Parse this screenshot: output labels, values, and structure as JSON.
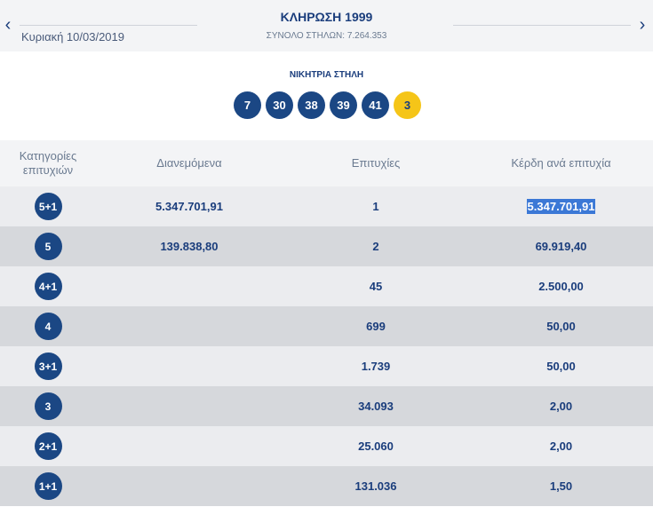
{
  "header": {
    "prev_arrow": "‹",
    "next_arrow": "›",
    "date": "Κυριακή 10/03/2019",
    "title": "ΚΛΗΡΩΣΗ 1999",
    "total_columns": "ΣΥΝΟΛΟ ΣΤΗΛΩΝ: 7.264.353"
  },
  "winning": {
    "label": "ΝΙΚΗΤΡΙΑ ΣΤΗΛΗ",
    "numbers": [
      "7",
      "30",
      "38",
      "39",
      "41"
    ],
    "joker": "3",
    "colors": {
      "number": "#1b4784",
      "joker": "#f5c518"
    }
  },
  "table": {
    "headers": {
      "category": "Κατηγορίες επιτυχιών",
      "distributed": "Διανεμόμενα",
      "winners": "Επιτυχίες",
      "prize": "Κέρδη ανά επιτυχία"
    },
    "rows": [
      {
        "category": "5+1",
        "distributed": "5.347.701,91",
        "winners": "1",
        "prize": "5.347.701,91",
        "selected": true
      },
      {
        "category": "5",
        "distributed": "139.838,80",
        "winners": "2",
        "prize": "69.919,40"
      },
      {
        "category": "4+1",
        "distributed": "",
        "winners": "45",
        "prize": "2.500,00"
      },
      {
        "category": "4",
        "distributed": "",
        "winners": "699",
        "prize": "50,00"
      },
      {
        "category": "3+1",
        "distributed": "",
        "winners": "1.739",
        "prize": "50,00"
      },
      {
        "category": "3",
        "distributed": "",
        "winners": "34.093",
        "prize": "2,00"
      },
      {
        "category": "2+1",
        "distributed": "",
        "winners": "25.060",
        "prize": "2,00"
      },
      {
        "category": "1+1",
        "distributed": "",
        "winners": "131.036",
        "prize": "1,50"
      }
    ]
  }
}
